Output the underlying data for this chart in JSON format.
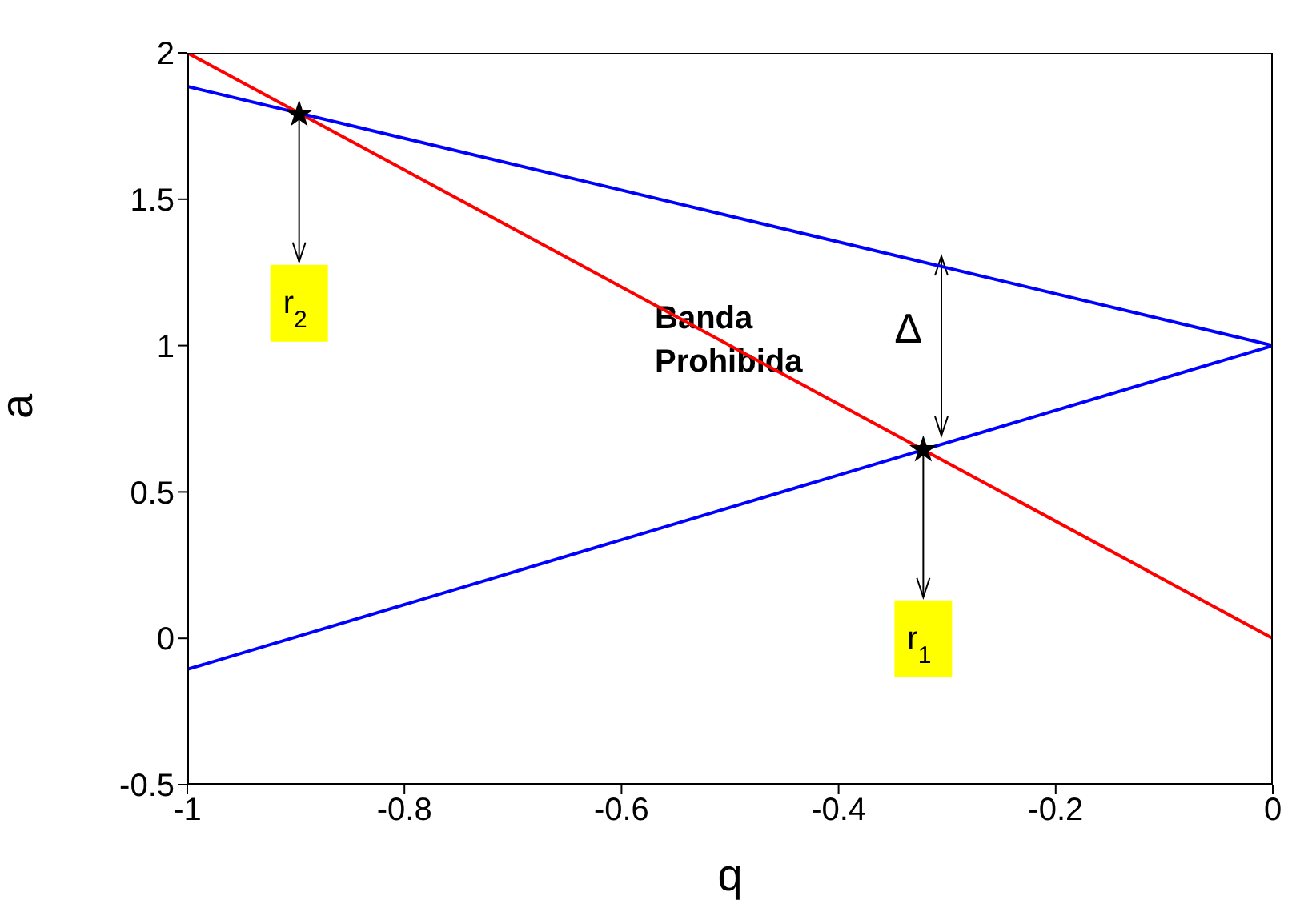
{
  "chart_data": {
    "type": "line",
    "xlabel": "q",
    "ylabel": "a",
    "xlim": [
      -1,
      0
    ],
    "xticks": [
      -1,
      -0.8,
      -0.6,
      -0.4,
      -0.2,
      0
    ],
    "ylim": [
      -0.5,
      2
    ],
    "yticks": [
      -0.5,
      0,
      0.5,
      1,
      1.5,
      2
    ],
    "marker": "none",
    "line_style": "solid",
    "series": [
      {
        "color": "#ff0000",
        "x": [
          -1,
          0
        ],
        "values": [
          2,
          0
        ]
      },
      {
        "color": "#0000ff",
        "x": [
          -1,
          0
        ],
        "values": [
          1.885,
          1
        ]
      },
      {
        "color": "#0000ff",
        "x": [
          -1,
          0
        ],
        "values": [
          -0.106,
          1
        ]
      },
      {
        "type": "scatter",
        "color": "#000000",
        "marker": "star",
        "x": [
          -0.897,
          -0.322
        ],
        "values": [
          1.79,
          0.644
        ]
      }
    ],
    "annotations": [
      {
        "text": "r$_{2}$",
        "x": -0.897,
        "y": 1.79
      },
      {
        "text": "r$_{1}$",
        "x": -0.322,
        "y": 0.644
      },
      "Δ",
      "Banda Prohibida"
    ]
  }
}
